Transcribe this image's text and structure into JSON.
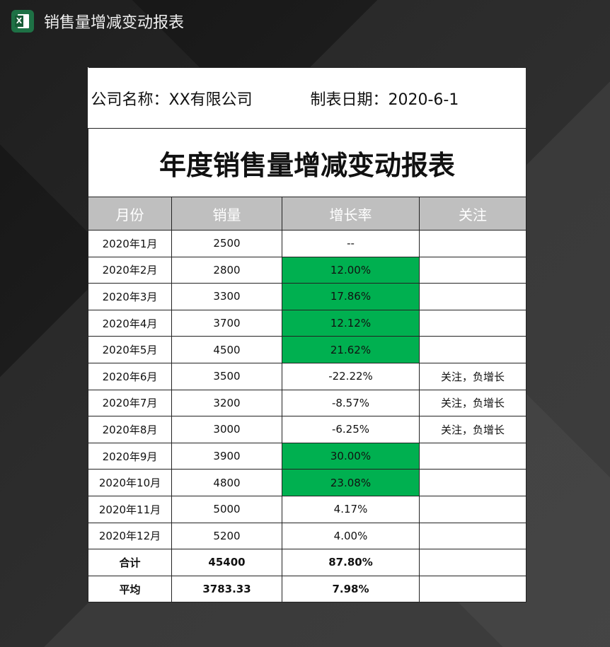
{
  "app": {
    "title": "销售量增减变动报表",
    "icon": "excel-icon"
  },
  "info": {
    "company": "公司名称：XX有限公司",
    "date": "制表日期：2020-6-1"
  },
  "report_title": "年度销售量增减变动报表",
  "colors": {
    "highlight": "#00b050",
    "header": "#bfbfbf"
  },
  "columns": [
    "月份",
    "销量",
    "增长率",
    "关注"
  ],
  "rows": [
    {
      "month": "2020年1月",
      "sales": "2500",
      "rate": "--",
      "note": "",
      "hl": false
    },
    {
      "month": "2020年2月",
      "sales": "2800",
      "rate": "12.00%",
      "note": "",
      "hl": true
    },
    {
      "month": "2020年3月",
      "sales": "3300",
      "rate": "17.86%",
      "note": "",
      "hl": true
    },
    {
      "month": "2020年4月",
      "sales": "3700",
      "rate": "12.12%",
      "note": "",
      "hl": true
    },
    {
      "month": "2020年5月",
      "sales": "4500",
      "rate": "21.62%",
      "note": "",
      "hl": true
    },
    {
      "month": "2020年6月",
      "sales": "3500",
      "rate": "-22.22%",
      "note": "关注，负增长",
      "hl": false
    },
    {
      "month": "2020年7月",
      "sales": "3200",
      "rate": "-8.57%",
      "note": "关注，负增长",
      "hl": false
    },
    {
      "month": "2020年8月",
      "sales": "3000",
      "rate": "-6.25%",
      "note": "关注，负增长",
      "hl": false
    },
    {
      "month": "2020年9月",
      "sales": "3900",
      "rate": "30.00%",
      "note": "",
      "hl": true
    },
    {
      "month": "2020年10月",
      "sales": "4800",
      "rate": "23.08%",
      "note": "",
      "hl": true
    },
    {
      "month": "2020年11月",
      "sales": "5000",
      "rate": "4.17%",
      "note": "",
      "hl": false
    },
    {
      "month": "2020年12月",
      "sales": "5200",
      "rate": "4.00%",
      "note": "",
      "hl": false
    }
  ],
  "summary": [
    {
      "label": "合计",
      "sales": "45400",
      "rate": "87.80%",
      "note": ""
    },
    {
      "label": "平均",
      "sales": "3783.33",
      "rate": "7.98%",
      "note": ""
    }
  ]
}
